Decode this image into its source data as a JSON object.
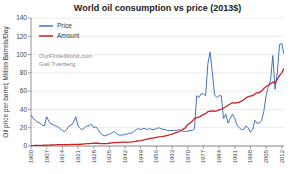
{
  "chart_data": {
    "type": "line",
    "title": "World oil consumption vs price (2013$)",
    "y_label": "Oil price per barrel; Million Barrels/Day",
    "x": [
      1900,
      1901,
      1902,
      1903,
      1904,
      1905,
      1906,
      1907,
      1908,
      1909,
      1910,
      1911,
      1912,
      1913,
      1914,
      1915,
      1916,
      1917,
      1918,
      1919,
      1920,
      1921,
      1922,
      1923,
      1924,
      1925,
      1926,
      1927,
      1928,
      1929,
      1930,
      1931,
      1932,
      1933,
      1934,
      1935,
      1936,
      1937,
      1938,
      1939,
      1940,
      1941,
      1942,
      1943,
      1944,
      1945,
      1946,
      1947,
      1948,
      1949,
      1950,
      1951,
      1952,
      1953,
      1954,
      1955,
      1956,
      1957,
      1958,
      1959,
      1960,
      1961,
      1962,
      1963,
      1964,
      1965,
      1966,
      1967,
      1968,
      1969,
      1970,
      1971,
      1972,
      1973,
      1974,
      1975,
      1976,
      1977,
      1978,
      1979,
      1980,
      1981,
      1982,
      1983,
      1984,
      1985,
      1986,
      1987,
      1988,
      1989,
      1990,
      1991,
      1992,
      1993,
      1994,
      1995,
      1996,
      1997,
      1998,
      1999,
      2000,
      2001,
      2002,
      2003,
      2004,
      2005,
      2006,
      2007,
      2008,
      2009,
      2010,
      2011,
      2012,
      2013
    ],
    "series": [
      {
        "name": "Price",
        "color": "#4472C4",
        "values": [
          34,
          30,
          28,
          26,
          25,
          23,
          22,
          32,
          27,
          24,
          23,
          22,
          21,
          19,
          17,
          16,
          18,
          22,
          23,
          26,
          32,
          22,
          19,
          18,
          20,
          22,
          22,
          24,
          20,
          21,
          18,
          14,
          12,
          11,
          12,
          13,
          14,
          16,
          14,
          12,
          12,
          12,
          13,
          13,
          14,
          14,
          16,
          18,
          19,
          18,
          19,
          19,
          18,
          19,
          18,
          18,
          19,
          20,
          19,
          18,
          18,
          17,
          17,
          17,
          17,
          17,
          18,
          17,
          16,
          16,
          16,
          17,
          17,
          19,
          55,
          53,
          57,
          57,
          55,
          90,
          103,
          80,
          56,
          53,
          55,
          55,
          30,
          35,
          25,
          30,
          35,
          30,
          23,
          20,
          18,
          18,
          22,
          20,
          15,
          18,
          28,
          25,
          25,
          28,
          38,
          55,
          65,
          72,
          99,
          62,
          80,
          111,
          112,
          100
        ]
      },
      {
        "name": "Amount",
        "color": "#CC2222",
        "values": [
          0.5,
          0.5,
          0.6,
          0.6,
          0.7,
          0.7,
          0.8,
          0.9,
          1.0,
          1.1,
          1.2,
          1.3,
          1.4,
          1.5,
          1.5,
          1.5,
          1.5,
          1.6,
          1.7,
          1.8,
          1.8,
          1.7,
          1.9,
          2.1,
          2.3,
          2.5,
          2.7,
          2.9,
          3.0,
          3.1,
          3.0,
          2.7,
          2.5,
          2.6,
          2.7,
          3.0,
          3.3,
          3.6,
          3.7,
          3.9,
          4.0,
          4.2,
          4.2,
          4.0,
          4.2,
          4.5,
          4.8,
          5.2,
          5.7,
          5.9,
          6.4,
          7.0,
          7.5,
          8.0,
          8.5,
          9.0,
          9.5,
          10.0,
          10.2,
          10.5,
          11.0,
          11.5,
          12.3,
          13.0,
          13.8,
          14.8,
          15.8,
          17.0,
          18.5,
          20.0,
          23.5,
          25.0,
          27.0,
          30.0,
          31.0,
          31.5,
          33.0,
          34.5,
          35.5,
          37.5,
          38.0,
          38.5,
          38.0,
          38.5,
          39.5,
          40.0,
          41.5,
          43.0,
          44.5,
          46.0,
          47.5,
          47.0,
          47.5,
          48.0,
          49.0,
          50.5,
          52.5,
          54.0,
          54.5,
          55.0,
          57.0,
          58.0,
          58.5,
          60.0,
          63.0,
          65.0,
          66.5,
          68.0,
          70.0,
          68.5,
          73.0,
          77.0,
          80.0,
          85.0
        ]
      }
    ],
    "xlim": [
      1900,
      2013
    ],
    "xticks": [
      1900,
      1907,
      1914,
      1921,
      1928,
      1935,
      1942,
      1949,
      1956,
      1963,
      1970,
      1977,
      1984,
      1991,
      1998,
      2005,
      2012
    ],
    "ylim": [
      0,
      140
    ],
    "yticks": [
      0,
      20,
      40,
      60,
      80,
      100,
      120,
      140
    ],
    "grid": true,
    "legend": "upper left",
    "annotations": [
      "Gail Tverberg",
      "OurFiniteWorld.com"
    ]
  }
}
